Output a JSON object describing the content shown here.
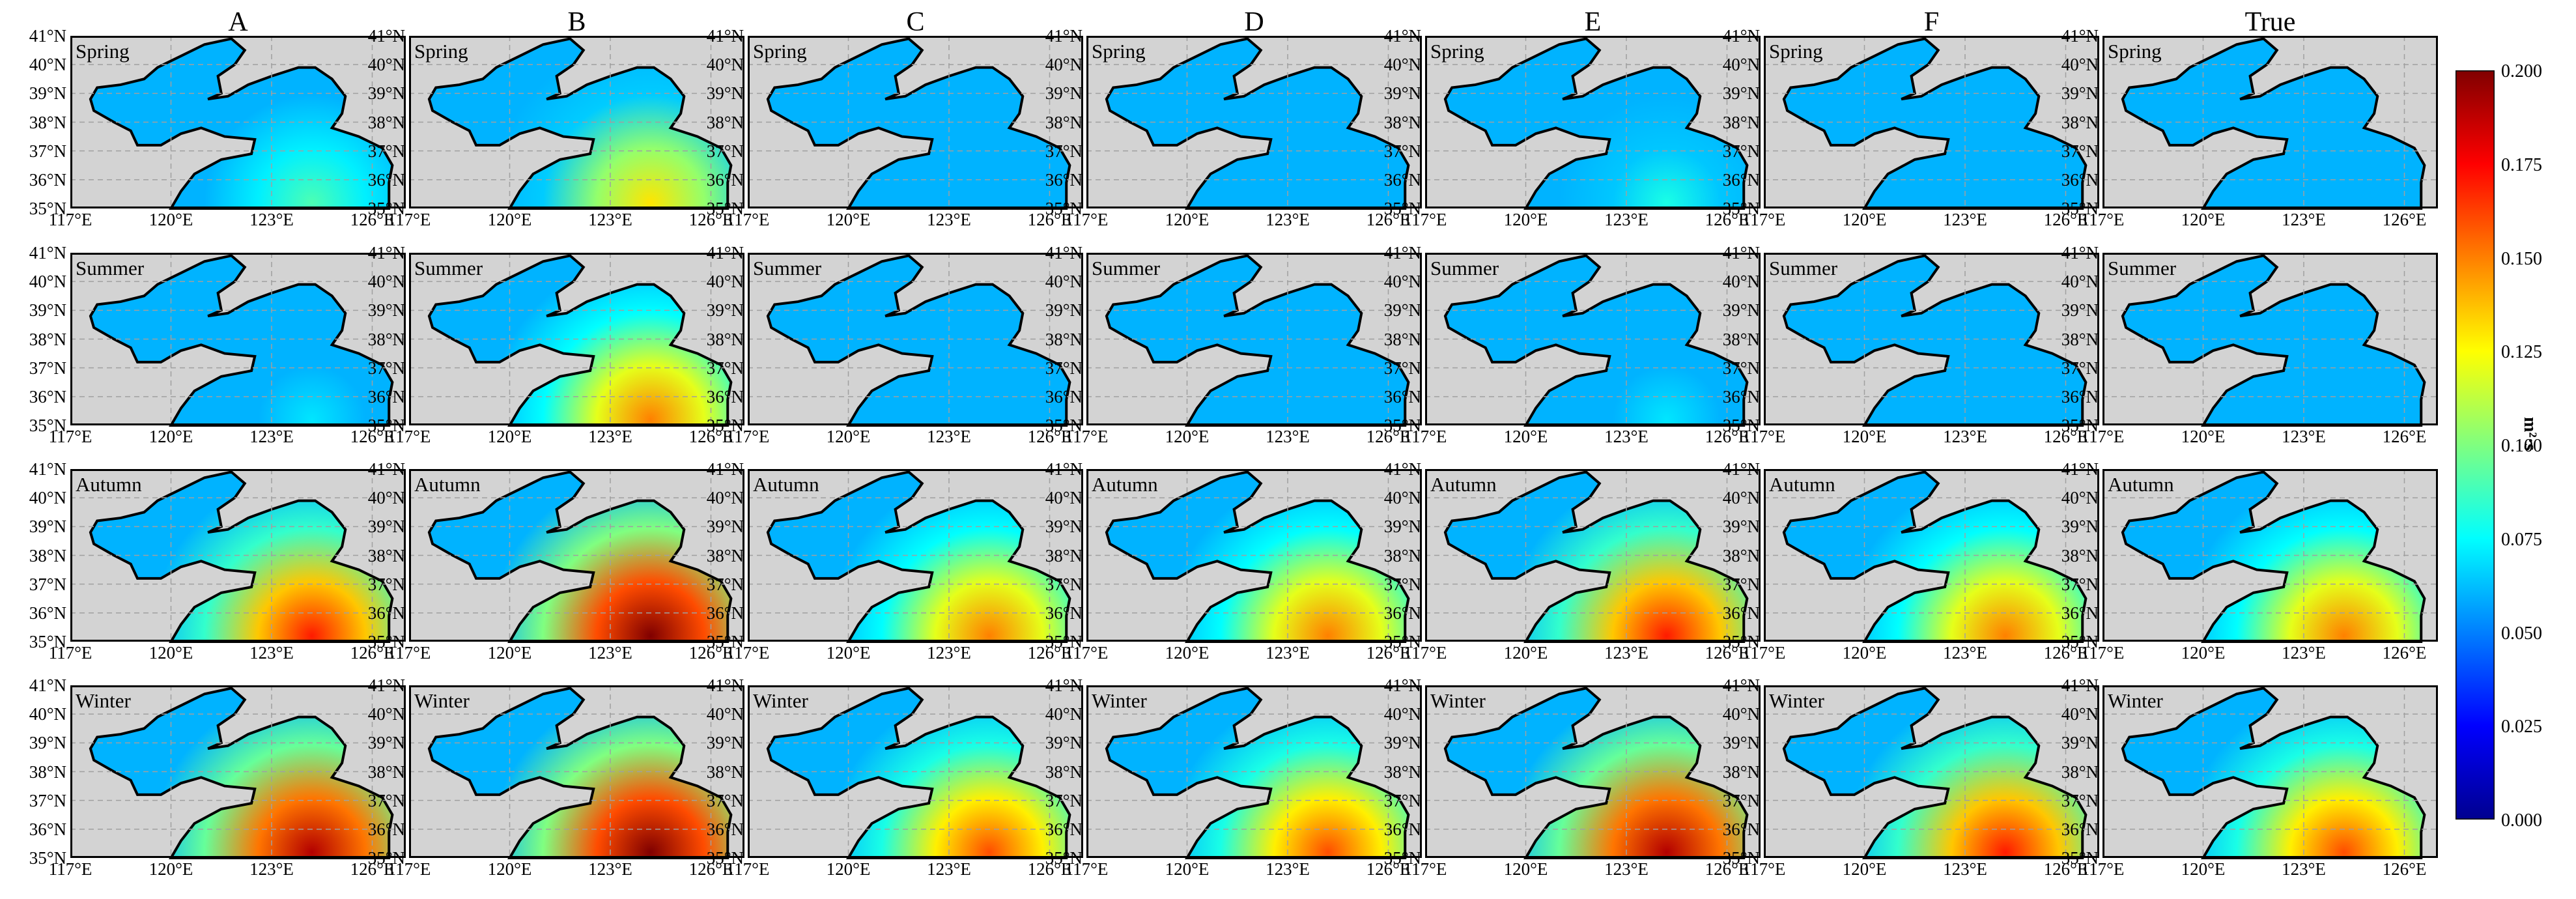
{
  "columns": [
    "A",
    "B",
    "C",
    "D",
    "E",
    "F",
    "True"
  ],
  "seasons": [
    "Spring",
    "Summer",
    "Autumn",
    "Winter"
  ],
  "x_ticks": [
    "117°E",
    "120°E",
    "123°E",
    "126°E"
  ],
  "y_ticks": [
    "41°N",
    "40°N",
    "39°N",
    "38°N",
    "37°N",
    "36°N",
    "35°N"
  ],
  "colorbar": {
    "label": "m²·s",
    "ticks": [
      "0.200",
      "0.175",
      "0.150",
      "0.125",
      "0.100",
      "0.075",
      "0.050",
      "0.025",
      "0.000"
    ],
    "range": [
      0.0,
      0.2
    ],
    "colormap": "jet"
  },
  "map_extent": {
    "lon": [
      117,
      127
    ],
    "lat": [
      35,
      41
    ]
  },
  "hotspot_peak_values": {
    "A": [
      0.09,
      0.07,
      0.17,
      0.19
    ],
    "B": [
      0.13,
      0.15,
      0.2,
      0.2
    ],
    "C": [
      0.06,
      0.05,
      0.15,
      0.16
    ],
    "D": [
      0.06,
      0.05,
      0.15,
      0.16
    ],
    "E": [
      0.08,
      0.07,
      0.17,
      0.19
    ],
    "F": [
      0.06,
      0.05,
      0.15,
      0.17
    ],
    "True": [
      0.06,
      0.05,
      0.15,
      0.16
    ]
  },
  "colors": {
    "land": "#d3d3d3",
    "grid": "#a0a0a0",
    "border": "#000000"
  }
}
